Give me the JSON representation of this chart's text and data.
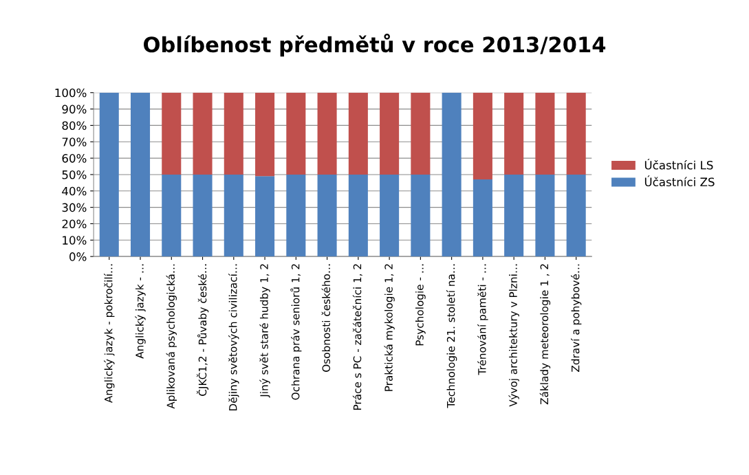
{
  "chart_data": {
    "type": "bar",
    "title": "Oblíbenost předmětů v roce 2013/2014",
    "stacked": true,
    "categories": [
      "Anglický jazyk - pokročilí…",
      "Anglický jazyk - …",
      "Aplikovaná psychologická…",
      "ČJKČ1,2 - Půvaby české…",
      "Dějiny světových civilizací…",
      "Jiný svět staré hudby 1, 2",
      "Ochrana práv seniorů 1, 2",
      "Osobnosti českého…",
      "Práce s PC - začátečníci 1, 2",
      "Praktická mykologie 1, 2",
      "Psychologie - …",
      "Technologie 21. století na…",
      "Trénování paměti - …",
      "Vývoj architektury v Plzni…",
      "Základy meteorologie 1 , 2",
      "Zdraví a pohybové…"
    ],
    "series": [
      {
        "name": "Účastníci ZS",
        "color": "#4f81bd",
        "values": [
          100,
          100,
          50,
          50,
          50,
          49,
          50,
          50,
          50,
          50,
          50,
          100,
          47,
          50,
          50,
          50
        ]
      },
      {
        "name": "Účastníci LS",
        "color": "#c0504d",
        "values": [
          0,
          0,
          50,
          50,
          50,
          51,
          50,
          50,
          50,
          50,
          50,
          0,
          53,
          50,
          50,
          50
        ]
      }
    ],
    "ylim": [
      0,
      100
    ],
    "yticks": [
      {
        "value": 0,
        "label": "0%"
      },
      {
        "value": 10,
        "label": "10%"
      },
      {
        "value": 20,
        "label": "20%"
      },
      {
        "value": 30,
        "label": "30%"
      },
      {
        "value": 40,
        "label": "40%"
      },
      {
        "value": 50,
        "label": "50%"
      },
      {
        "value": 60,
        "label": "60%"
      },
      {
        "value": 70,
        "label": "70%"
      },
      {
        "value": 80,
        "label": "80%"
      },
      {
        "value": 90,
        "label": "90%"
      },
      {
        "value": 100,
        "label": "100%"
      }
    ],
    "grid": "y",
    "legend": "right"
  }
}
